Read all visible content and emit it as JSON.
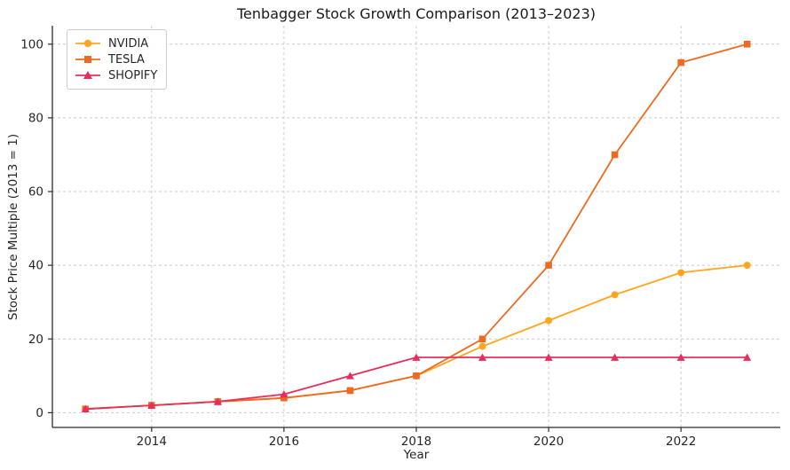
{
  "chart_data": {
    "type": "line",
    "title": "Tenbagger Stock Growth Comparison (2013–2023)",
    "xlabel": "Year",
    "ylabel": "Stock Price Multiple (2013 = 1)",
    "x": [
      2013,
      2014,
      2015,
      2016,
      2017,
      2018,
      2019,
      2020,
      2021,
      2022,
      2023
    ],
    "series": [
      {
        "name": "NVIDIA",
        "color": "#FFA51E",
        "marker": "circle",
        "values": [
          1,
          2,
          3,
          4,
          6,
          10,
          18,
          25,
          32,
          38,
          40
        ]
      },
      {
        "name": "TESLA",
        "color": "#EE6A21",
        "marker": "square",
        "values": [
          1,
          2,
          3,
          4,
          6,
          10,
          20,
          40,
          70,
          95,
          100
        ]
      },
      {
        "name": "SHOPIFY",
        "color": "#E62E5C",
        "marker": "triangle",
        "values": [
          1,
          2,
          3,
          5,
          10,
          15,
          15,
          15,
          15,
          15,
          15
        ]
      }
    ],
    "xticks": [
      2014,
      2016,
      2018,
      2020,
      2022
    ],
    "yticks": [
      0,
      20,
      40,
      60,
      80,
      100
    ],
    "xlim": [
      2012.5,
      2023.5
    ],
    "ylim": [
      -4,
      105
    ],
    "grid": true,
    "grid_style": "dashed",
    "grid_color": "#cccccc",
    "spine_color": "#2b2b2b",
    "legend_position": "upper left",
    "background": "#ffffff"
  }
}
